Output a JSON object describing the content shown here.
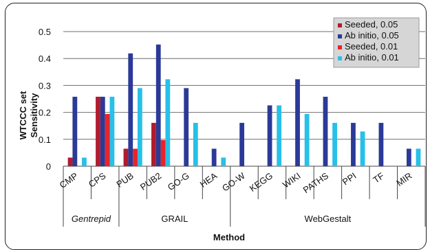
{
  "chart_data": {
    "type": "bar",
    "xlabel": "Method",
    "ylabel_lines": [
      "WTCCC set",
      "Sensitivity"
    ],
    "ylim": [
      0,
      0.5
    ],
    "yticks": [
      "0",
      "0.1",
      "0.2",
      "0.3",
      "0.4",
      "0.5"
    ],
    "grid": true,
    "legend_position": "top-right",
    "categories": [
      "CMP",
      "CPS",
      "PUB",
      "PUB2",
      "GO-G",
      "HEA",
      "GO-W",
      "KEGG",
      "WIKI",
      "PATHS",
      "PPI",
      "TF",
      "MIR"
    ],
    "groups": [
      {
        "label": "Gentrepid",
        "italic": true,
        "categories": [
          "CMP",
          "CPS"
        ]
      },
      {
        "label": "GRAIL",
        "italic": false,
        "categories": [
          "PUB",
          "PUB2",
          "GO-G",
          "HEA"
        ]
      },
      {
        "label": "WebGestalt",
        "italic": false,
        "categories": [
          "GO-W",
          "KEGG",
          "WIKI",
          "PATHS",
          "PPI",
          "TF",
          "MIR"
        ]
      }
    ],
    "series": [
      {
        "name": "Seeded, 0.05",
        "color": "#b01c2e",
        "values": [
          0.032,
          0.258,
          0.065,
          0.161,
          0,
          0,
          0,
          0,
          0,
          0,
          0,
          0,
          0
        ]
      },
      {
        "name": "Ab initio, 0.05",
        "color": "#2b3a97",
        "values": [
          0.258,
          0.258,
          0.419,
          0.452,
          0.29,
          0.065,
          0.161,
          0.226,
          0.323,
          0.258,
          0.161,
          0.161,
          0.065
        ]
      },
      {
        "name": "Seeded, 0.01",
        "color": "#e8242a",
        "values": [
          0,
          0.194,
          0.065,
          0.097,
          0,
          0,
          0,
          0,
          0,
          0,
          0,
          0,
          0
        ]
      },
      {
        "name": "Ab initio, 0.01",
        "color": "#27c0e8",
        "values": [
          0.032,
          0.258,
          0.29,
          0.323,
          0.161,
          0.032,
          0,
          0.226,
          0.194,
          0.161,
          0.129,
          0,
          0.065
        ]
      }
    ]
  }
}
